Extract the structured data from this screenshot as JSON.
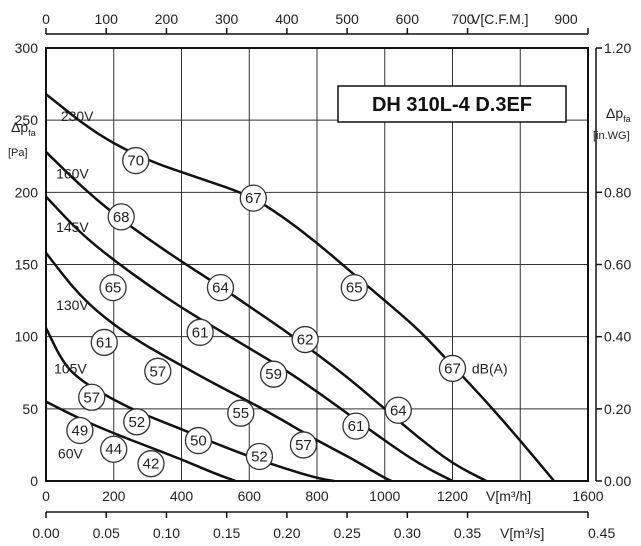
{
  "chart_data": {
    "type": "line",
    "title": "DH 310L-4 D.3EF",
    "x_bottom": {
      "label": "V[m³/h]",
      "range": [
        0,
        1600
      ],
      "ticks": [
        "0",
        "200",
        "400",
        "600",
        "800",
        "1000",
        "1200",
        "1600"
      ]
    },
    "x_bottom2": {
      "label": "V[m³/s]",
      "range": [
        0,
        0.45
      ],
      "ticks": [
        "0.00",
        "0.05",
        "0.10",
        "0.15",
        "0.20",
        "0.25",
        "0.30",
        "0.35",
        "0.45"
      ]
    },
    "x_top": {
      "label": "V[C.F.M.]",
      "range": [
        0,
        900
      ],
      "ticks": [
        "0",
        "100",
        "200",
        "300",
        "400",
        "500",
        "600",
        "700",
        "900"
      ]
    },
    "y_left": {
      "label_main": "Δp",
      "label_sub": "fa",
      "unit": "[Pa]",
      "range": [
        0,
        300
      ],
      "ticks": [
        "0",
        "50",
        "100",
        "150",
        "200",
        "250",
        "300"
      ]
    },
    "y_right": {
      "label_main": "Δp",
      "label_sub": "fa",
      "unit": "[in.WG]",
      "range": [
        0,
        1.2
      ],
      "ticks": [
        "0.00",
        "0.20",
        "0.40",
        "0.60",
        "0.80",
        "1.20"
      ]
    },
    "grid": true,
    "series": [
      {
        "name": "230V",
        "x": [
          0,
          150,
          300,
          450,
          600,
          700,
          800,
          900,
          1000,
          1100,
          1200,
          1300,
          1400,
          1500
        ],
        "y": [
          268,
          240,
          222,
          210,
          198,
          183,
          165,
          145,
          125,
          105,
          80,
          55,
          28,
          0
        ]
      },
      {
        "name": "160V",
        "x": [
          0,
          100,
          200,
          300,
          400,
          500,
          600,
          700,
          800,
          900,
          1000,
          1100,
          1200,
          1300
        ],
        "y": [
          228,
          205,
          185,
          168,
          152,
          137,
          121,
          105,
          88,
          70,
          50,
          30,
          12,
          0
        ]
      },
      {
        "name": "145V",
        "x": [
          0,
          100,
          200,
          300,
          400,
          500,
          600,
          700,
          800,
          900,
          1000,
          1100,
          1200
        ],
        "y": [
          197,
          172,
          153,
          136,
          120,
          106,
          92,
          78,
          62,
          45,
          28,
          12,
          0
        ]
      },
      {
        "name": "130V",
        "x": [
          0,
          100,
          200,
          300,
          400,
          500,
          600,
          700,
          800,
          900,
          1000,
          1020
        ],
        "y": [
          158,
          128,
          108,
          93,
          80,
          67,
          55,
          42,
          28,
          16,
          2,
          0
        ]
      },
      {
        "name": "105V",
        "x": [
          0,
          50,
          100,
          200,
          300,
          400,
          500,
          600,
          700,
          800,
          850
        ],
        "y": [
          106,
          82,
          70,
          56,
          45,
          36,
          26,
          17,
          9,
          2,
          0
        ]
      },
      {
        "name": "60V",
        "x": [
          0,
          100,
          200,
          300,
          400,
          500,
          560
        ],
        "y": [
          55,
          43,
          33,
          24,
          15,
          5,
          0
        ]
      }
    ],
    "sound_labels": [
      {
        "text": "70",
        "x": 265,
        "y": 222
      },
      {
        "text": "67",
        "x": 612,
        "y": 196
      },
      {
        "text": "68",
        "x": 222,
        "y": 183
      },
      {
        "text": "64",
        "x": 515,
        "y": 134
      },
      {
        "text": "65",
        "x": 910,
        "y": 134
      },
      {
        "text": "65",
        "x": 198,
        "y": 134
      },
      {
        "text": "61",
        "x": 172,
        "y": 96
      },
      {
        "text": "61",
        "x": 455,
        "y": 103
      },
      {
        "text": "62",
        "x": 765,
        "y": 98
      },
      {
        "text": "67",
        "x": 1200,
        "y": 78
      },
      {
        "text": "57",
        "x": 330,
        "y": 76
      },
      {
        "text": "59",
        "x": 672,
        "y": 74
      },
      {
        "text": "57",
        "x": 135,
        "y": 58
      },
      {
        "text": "55",
        "x": 575,
        "y": 47
      },
      {
        "text": "64",
        "x": 1040,
        "y": 49
      },
      {
        "text": "52",
        "x": 268,
        "y": 41
      },
      {
        "text": "61",
        "x": 915,
        "y": 38
      },
      {
        "text": "49",
        "x": 100,
        "y": 35
      },
      {
        "text": "44",
        "x": 200,
        "y": 22
      },
      {
        "text": "50",
        "x": 450,
        "y": 28
      },
      {
        "text": "57",
        "x": 760,
        "y": 25
      },
      {
        "text": "52",
        "x": 630,
        "y": 17
      },
      {
        "text": "42",
        "x": 310,
        "y": 12
      }
    ],
    "series_labels": [
      {
        "text": "230V",
        "x": 92,
        "y": 253
      },
      {
        "text": "160V",
        "x": 78,
        "y": 213
      },
      {
        "text": "145V",
        "x": 78,
        "y": 176
      },
      {
        "text": "130V",
        "x": 78,
        "y": 122
      },
      {
        "text": "105V",
        "x": 72,
        "y": 78
      },
      {
        "text": "60V",
        "x": 72,
        "y": 19
      }
    ],
    "unit_annotation": {
      "text": "dB(A)",
      "x": 1310,
      "y": 78
    }
  }
}
